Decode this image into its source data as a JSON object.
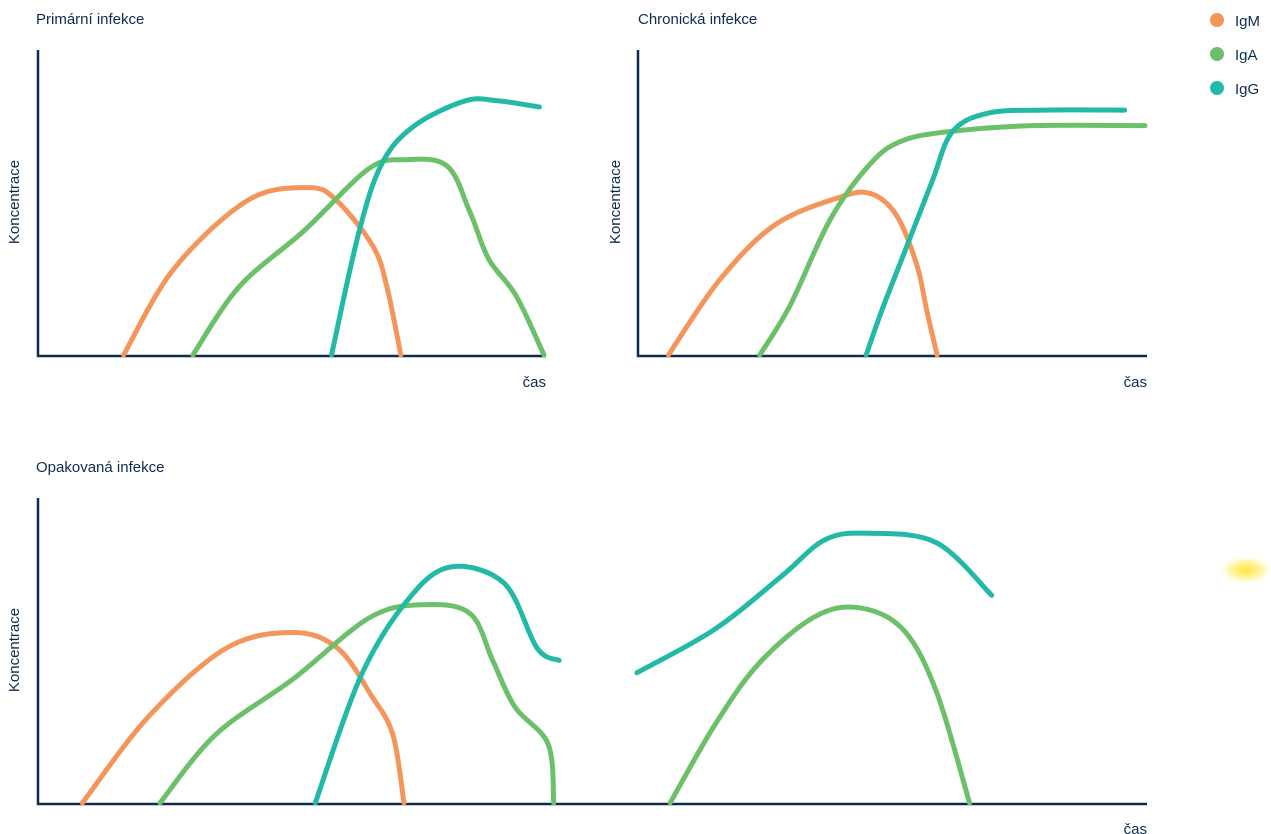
{
  "legend": [
    {
      "name": "IgM",
      "color": "#f4965c"
    },
    {
      "name": "IgA",
      "color": "#6cc06a"
    },
    {
      "name": "IgG",
      "color": "#22b9a6"
    }
  ],
  "chart_data": [
    {
      "type": "line",
      "title": "Primární infekce",
      "xlabel": "čas",
      "ylabel": "Koncentrace",
      "xlim": [
        0,
        100
      ],
      "ylim": [
        0,
        100
      ],
      "grid": false,
      "series": [
        {
          "name": "IgM",
          "points": [
            [
              9,
              0
            ],
            [
              20,
              28
            ],
            [
              36,
              50
            ],
            [
              49,
              54
            ],
            [
              55,
              50
            ],
            [
              63,
              35
            ],
            [
              66,
              22
            ],
            [
              69,
              0
            ]
          ]
        },
        {
          "name": "IgA",
          "points": [
            [
              24,
              0
            ],
            [
              34,
              22
            ],
            [
              48,
              40
            ],
            [
              62,
              60
            ],
            [
              70,
              63
            ],
            [
              79,
              61
            ],
            [
              84,
              46
            ],
            [
              88,
              31
            ],
            [
              94,
              19
            ],
            [
              100,
              0
            ]
          ]
        },
        {
          "name": "IgG",
          "points": [
            [
              54,
              0
            ],
            [
              60,
              40
            ],
            [
              65,
              62
            ],
            [
              72,
              74
            ],
            [
              83,
              82
            ],
            [
              90,
              82
            ],
            [
              99,
              80
            ]
          ]
        }
      ]
    },
    {
      "type": "line",
      "title": "Chronická infekce",
      "xlabel": "čas",
      "ylabel": "Koncentrace",
      "xlim": [
        0,
        100
      ],
      "ylim": [
        0,
        100
      ],
      "grid": false,
      "series": [
        {
          "name": "IgM",
          "points": [
            [
              6,
              0
            ],
            [
              16,
              24
            ],
            [
              27,
              42
            ],
            [
              40,
              51
            ],
            [
              46,
              52
            ],
            [
              51,
              45
            ],
            [
              55,
              29
            ],
            [
              57,
              14
            ],
            [
              59,
              0
            ]
          ]
        },
        {
          "name": "IgA",
          "points": [
            [
              24,
              0
            ],
            [
              30,
              16
            ],
            [
              38,
              44
            ],
            [
              46,
              62
            ],
            [
              52,
              69
            ],
            [
              61,
              72
            ],
            [
              78,
              74
            ],
            [
              100,
              74
            ]
          ]
        },
        {
          "name": "IgG",
          "points": [
            [
              45,
              0
            ],
            [
              48,
              14
            ],
            [
              53,
              35
            ],
            [
              58,
              56
            ],
            [
              62,
              72
            ],
            [
              69,
              78
            ],
            [
              80,
              79
            ],
            [
              96,
              79
            ]
          ]
        }
      ]
    },
    {
      "type": "line",
      "title": "Opakovaná infekce",
      "xlabel": "čas",
      "ylabel": "Koncentrace",
      "xlim": [
        0,
        100
      ],
      "ylim": [
        0,
        100
      ],
      "grid": false,
      "series": [
        {
          "name": "IgM",
          "points": [
            [
              4,
              0
            ],
            [
              10,
              28
            ],
            [
              17,
              50
            ],
            [
              23,
              55
            ],
            [
              27,
              50
            ],
            [
              30,
              35
            ],
            [
              32,
              22
            ],
            [
              33,
              0
            ]
          ]
        },
        {
          "name": "IgA",
          "points": [
            [
              11,
              0
            ],
            [
              16,
              22
            ],
            [
              23,
              40
            ],
            [
              30,
              60
            ],
            [
              35,
              64
            ],
            [
              39,
              61
            ],
            [
              41,
              46
            ],
            [
              43,
              31
            ],
            [
              46,
              19
            ],
            [
              46.5,
              0
            ]
          ]
        },
        {
          "name": "IgA",
          "points": [
            [
              57,
              0
            ],
            [
              61,
              25
            ],
            [
              65,
              45
            ],
            [
              70,
              60
            ],
            [
              74,
              63
            ],
            [
              78,
              56
            ],
            [
              81,
              36
            ],
            [
              84,
              0
            ]
          ]
        },
        {
          "name": "IgG",
          "points": [
            [
              25,
              0
            ],
            [
              29,
              40
            ],
            [
              33,
              64
            ],
            [
              37,
              76
            ],
            [
              42,
              71
            ],
            [
              45,
              50
            ],
            [
              47,
              46
            ]
          ]
        },
        {
          "name": "IgG",
          "points": [
            [
              54,
              42
            ],
            [
              61,
              56
            ],
            [
              67,
              73
            ],
            [
              71,
              85
            ],
            [
              75,
              87
            ],
            [
              81,
              84
            ],
            [
              86,
              67
            ]
          ]
        }
      ]
    }
  ]
}
